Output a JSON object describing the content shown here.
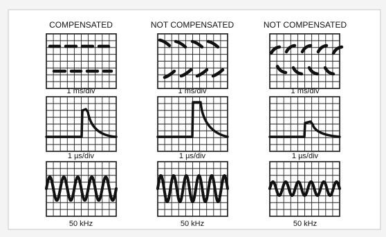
{
  "columns": [
    {
      "title": "COMPENSATED"
    },
    {
      "title": "NOT COMPENSATED"
    },
    {
      "title": "NOT COMPENSATED"
    }
  ],
  "rows": [
    {
      "caption": "1 ms/div",
      "trace": "square-wave"
    },
    {
      "caption": "1 µs/div",
      "trace": "pulse"
    },
    {
      "caption": "50 kHz",
      "trace": "sine-wave"
    }
  ],
  "colors": {
    "background": "#f4f4f4",
    "panel": "#ffffff",
    "ink": "#111111"
  }
}
